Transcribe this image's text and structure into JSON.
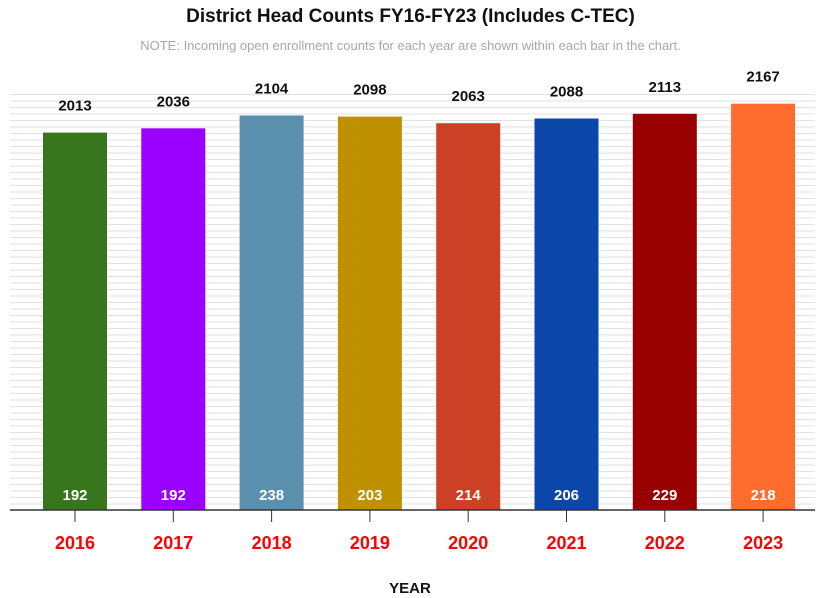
{
  "chart_data": {
    "type": "bar",
    "title": "District Head Counts FY16-FY23 (Includes C-TEC)",
    "subtitle": "NOTE: Incoming open enrollment counts for each year are shown within each bar in the chart.",
    "xlabel": "YEAR",
    "ylabel": "",
    "categories": [
      "2016",
      "2017",
      "2018",
      "2019",
      "2020",
      "2021",
      "2022",
      "2023"
    ],
    "series": [
      {
        "values": [
          2013,
          2036,
          2104,
          2098,
          2063,
          2088,
          2113,
          2167
        ]
      }
    ],
    "inner_values": [
      192,
      192,
      238,
      203,
      214,
      206,
      229,
      218
    ],
    "bar_colors": [
      "#38761d",
      "#9900ff",
      "#5b8fae",
      "#bf9000",
      "#cc4125",
      "#0b47a8",
      "#990000",
      "#ff6d2e"
    ],
    "tick_label_color": "#ff0000",
    "ylim": [
      0,
      2240
    ],
    "grid": true,
    "legend": "none"
  }
}
